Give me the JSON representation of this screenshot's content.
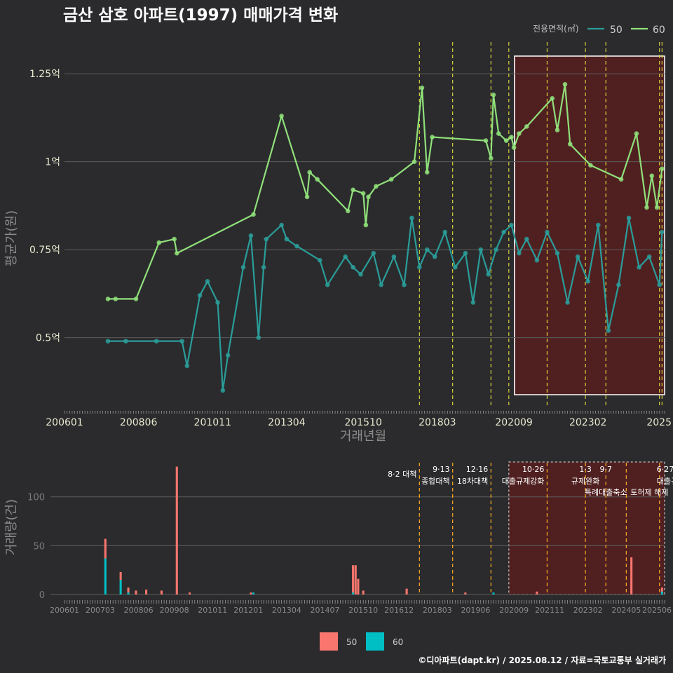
{
  "title": "금산 삼호 아파트(1997) 매매가격 변화",
  "footer": "©디아파트(dapt.kr) / 2025.08.12 / 자료=국토교통부 실거래가",
  "colors": {
    "s50": "#2a9d9a",
    "s60": "#90e07a",
    "bar50": "#f8766d",
    "bar60": "#00bfc4",
    "highlight": "#5a1e1e"
  },
  "legend_top": {
    "title": "전용면적(㎡)",
    "items": [
      "50",
      "60"
    ]
  },
  "legend_bottom": {
    "items": [
      "50",
      "60"
    ]
  },
  "chart_data": [
    {
      "type": "line",
      "title": "금산 삼호 아파트(1997) 매매가격 변화",
      "xlabel": "거래년월",
      "ylabel": "평균가(원)",
      "x_ticks": [
        "200601",
        "200806",
        "201011",
        "201304",
        "201510",
        "201803",
        "202009",
        "202302",
        "2025"
      ],
      "y_ticks": [
        {
          "v": 0.5,
          "label": "0.5억"
        },
        {
          "v": 0.75,
          "label": "0.75억"
        },
        {
          "v": 1.0,
          "label": "1억"
        },
        {
          "v": 1.25,
          "label": "1.25억"
        }
      ],
      "ylim": [
        0.3,
        1.35
      ],
      "xlim": [
        "2006-01",
        "2025-08"
      ],
      "policy_dates": [
        "2017-08",
        "2018-09",
        "2019-12",
        "2020-07",
        "2021-10",
        "2023-01",
        "2023-09",
        "2025-06",
        "2025-07"
      ],
      "highlight": {
        "from": "2020-07",
        "to": "2025-08"
      },
      "series": [
        {
          "name": "60",
          "points": [
            [
              "2007-06",
              0.61
            ],
            [
              "2007-09",
              0.61
            ],
            [
              "2008-05",
              0.61
            ],
            [
              "2009-02",
              0.77
            ],
            [
              "2009-08",
              0.78
            ],
            [
              "2009-09",
              0.74
            ],
            [
              "2012-03",
              0.85
            ],
            [
              "2013-02",
              1.13
            ],
            [
              "2013-12",
              0.9
            ],
            [
              "2014-01",
              0.97
            ],
            [
              "2014-04",
              0.95
            ],
            [
              "2015-04",
              0.86
            ],
            [
              "2015-06",
              0.92
            ],
            [
              "2015-10",
              0.91
            ],
            [
              "2015-11",
              0.82
            ],
            [
              "2015-12",
              0.9
            ],
            [
              "2016-03",
              0.93
            ],
            [
              "2016-09",
              0.95
            ],
            [
              "2017-06",
              1.0
            ],
            [
              "2017-09",
              1.21
            ],
            [
              "2017-11",
              0.97
            ],
            [
              "2018-01",
              1.07
            ],
            [
              "2019-10",
              1.06
            ],
            [
              "2019-12",
              1.01
            ],
            [
              "2020-01",
              1.19
            ],
            [
              "2020-03",
              1.08
            ],
            [
              "2020-06",
              1.06
            ],
            [
              "2020-08",
              1.07
            ],
            [
              "2020-09",
              1.04
            ],
            [
              "2020-11",
              1.08
            ],
            [
              "2021-02",
              1.1
            ],
            [
              "2021-12",
              1.18
            ],
            [
              "2022-02",
              1.09
            ],
            [
              "2022-05",
              1.22
            ],
            [
              "2022-07",
              1.05
            ],
            [
              "2023-03",
              0.99
            ],
            [
              "2024-03",
              0.95
            ],
            [
              "2024-09",
              1.08
            ],
            [
              "2025-01",
              0.87
            ],
            [
              "2025-03",
              0.96
            ],
            [
              "2025-05",
              0.87
            ],
            [
              "2025-07",
              0.98
            ]
          ]
        },
        {
          "name": "50",
          "points": [
            [
              "2007-06",
              0.49
            ],
            [
              "2008-01",
              0.49
            ],
            [
              "2009-01",
              0.49
            ],
            [
              "2009-11",
              0.49
            ],
            [
              "2010-01",
              0.42
            ],
            [
              "2010-06",
              0.62
            ],
            [
              "2010-09",
              0.66
            ],
            [
              "2011-01",
              0.6
            ],
            [
              "2011-03",
              0.35
            ],
            [
              "2011-05",
              0.45
            ],
            [
              "2011-11",
              0.7
            ],
            [
              "2012-02",
              0.79
            ],
            [
              "2012-05",
              0.5
            ],
            [
              "2012-07",
              0.7
            ],
            [
              "2012-08",
              0.78
            ],
            [
              "2013-02",
              0.82
            ],
            [
              "2013-04",
              0.78
            ],
            [
              "2013-08",
              0.76
            ],
            [
              "2014-05",
              0.72
            ],
            [
              "2014-08",
              0.65
            ],
            [
              "2015-03",
              0.73
            ],
            [
              "2015-06",
              0.7
            ],
            [
              "2015-09",
              0.68
            ],
            [
              "2016-02",
              0.74
            ],
            [
              "2016-05",
              0.65
            ],
            [
              "2016-10",
              0.73
            ],
            [
              "2017-02",
              0.65
            ],
            [
              "2017-05",
              0.84
            ],
            [
              "2017-08",
              0.7
            ],
            [
              "2017-11",
              0.75
            ],
            [
              "2018-02",
              0.73
            ],
            [
              "2018-06",
              0.8
            ],
            [
              "2018-10",
              0.7
            ],
            [
              "2019-02",
              0.74
            ],
            [
              "2019-05",
              0.6
            ],
            [
              "2019-08",
              0.75
            ],
            [
              "2019-11",
              0.68
            ],
            [
              "2020-02",
              0.75
            ],
            [
              "2020-05",
              0.8
            ],
            [
              "2020-08",
              0.82
            ],
            [
              "2020-11",
              0.74
            ],
            [
              "2021-02",
              0.78
            ],
            [
              "2021-06",
              0.72
            ],
            [
              "2021-10",
              0.8
            ],
            [
              "2022-02",
              0.74
            ],
            [
              "2022-06",
              0.6
            ],
            [
              "2022-10",
              0.73
            ],
            [
              "2023-02",
              0.66
            ],
            [
              "2023-06",
              0.82
            ],
            [
              "2023-10",
              0.52
            ],
            [
              "2024-02",
              0.65
            ],
            [
              "2024-06",
              0.84
            ],
            [
              "2024-10",
              0.7
            ],
            [
              "2025-02",
              0.73
            ],
            [
              "2025-06",
              0.65
            ],
            [
              "2025-07",
              0.8
            ]
          ]
        }
      ]
    },
    {
      "type": "bar",
      "stacked": true,
      "ylabel": "거래량(건)",
      "x_ticks": [
        "200601",
        "200703",
        "200806",
        "200908",
        "201011",
        "201201",
        "201304",
        "201407",
        "201510",
        "201612",
        "201803",
        "201906",
        "202009",
        "202111",
        "202302",
        "202405",
        "202506"
      ],
      "y_ticks": [
        0,
        50,
        100
      ],
      "ylim": [
        0,
        135
      ],
      "highlight": {
        "from": "2020-07",
        "to": "2025-08"
      },
      "annotations": [
        {
          "date": "2017-08",
          "label": "8·2 대책"
        },
        {
          "date": "2018-09",
          "date_label": "9·13",
          "label": "종합대책"
        },
        {
          "date": "2019-12",
          "date_label": "12·16",
          "label": "18차대책"
        },
        {
          "date": "2021-10",
          "date_label": "10·26",
          "label": "대출규제강화"
        },
        {
          "date": "2023-01",
          "date_label": "1·3",
          "label": "규제완화"
        },
        {
          "date": "2023-09",
          "date_label": "9·7",
          "label": "특례대출축소"
        },
        {
          "date": "2024-05",
          "label": "토허제 해제"
        },
        {
          "date": "2025-06",
          "date_label": "6·27",
          "label": "대출규"
        }
      ],
      "series": [
        {
          "name": "50",
          "values": [
            [
              "2007-05",
              20
            ],
            [
              "2007-11",
              8
            ],
            [
              "2008-02",
              5
            ],
            [
              "2008-05",
              4
            ],
            [
              "2008-09",
              5
            ],
            [
              "2009-03",
              4
            ],
            [
              "2009-09",
              131
            ],
            [
              "2010-02",
              2
            ],
            [
              "2012-02",
              2
            ],
            [
              "2015-06",
              28
            ],
            [
              "2015-07",
              30
            ],
            [
              "2015-08",
              16
            ],
            [
              "2015-10",
              4
            ],
            [
              "2017-03",
              6
            ],
            [
              "2019-02",
              2
            ],
            [
              "2021-06",
              3
            ],
            [
              "2024-07",
              38
            ],
            [
              "2025-07",
              4
            ]
          ]
        },
        {
          "name": "60",
          "values": [
            [
              "2007-05",
              37
            ],
            [
              "2007-11",
              15
            ],
            [
              "2008-02",
              2
            ],
            [
              "2012-03",
              2
            ],
            [
              "2015-06",
              2
            ],
            [
              "2020-01",
              2
            ],
            [
              "2025-07",
              3
            ]
          ]
        }
      ]
    }
  ]
}
